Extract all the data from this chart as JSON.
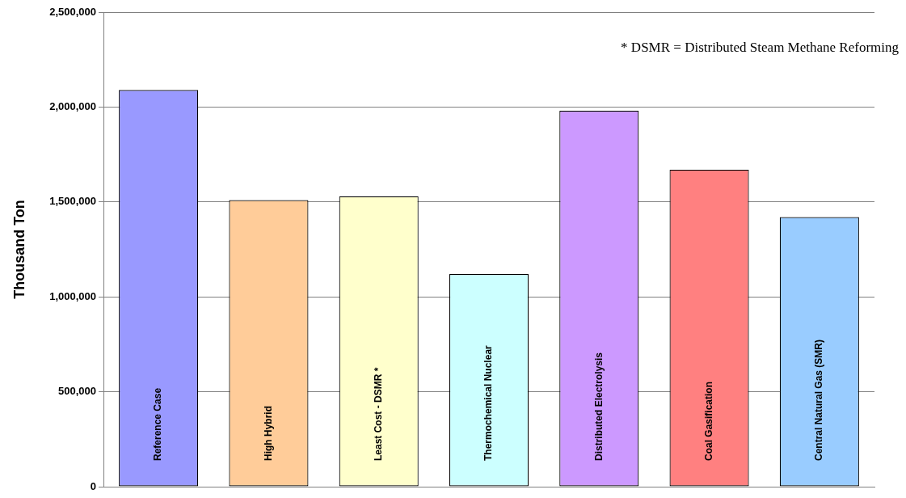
{
  "chart_data": {
    "type": "bar",
    "ylabel": "Thousand Ton",
    "categories": [
      "Reference Case",
      "High Hybrid",
      "Least Cost - DSMR *",
      "Thermochemical Nuclear",
      "Distributed Electrolysis",
      "Coal Gasification",
      "Central Natural Gas (SMR)"
    ],
    "values": [
      2090000,
      1510000,
      1530000,
      1120000,
      1980000,
      1670000,
      1420000
    ],
    "colors": [
      "#9999ff",
      "#ffcc99",
      "#ffffcc",
      "#ccffff",
      "#cc99ff",
      "#ff8080",
      "#99ccff"
    ],
    "ylim": [
      0,
      2500000
    ],
    "yticks": [
      0,
      {
        "value": 500000,
        "label": "500,000"
      },
      {
        "value": 1000000,
        "label": "1,000,000"
      },
      {
        "value": 1500000,
        "label": "1,500,000"
      },
      {
        "value": 2000000,
        "label": "2,000,000"
      },
      {
        "value": 2500000,
        "label": "2,500,000"
      }
    ],
    "grid": "y",
    "legend": false,
    "annotations": [
      "* DSMR = Distributed Steam Methane Reforming"
    ]
  }
}
